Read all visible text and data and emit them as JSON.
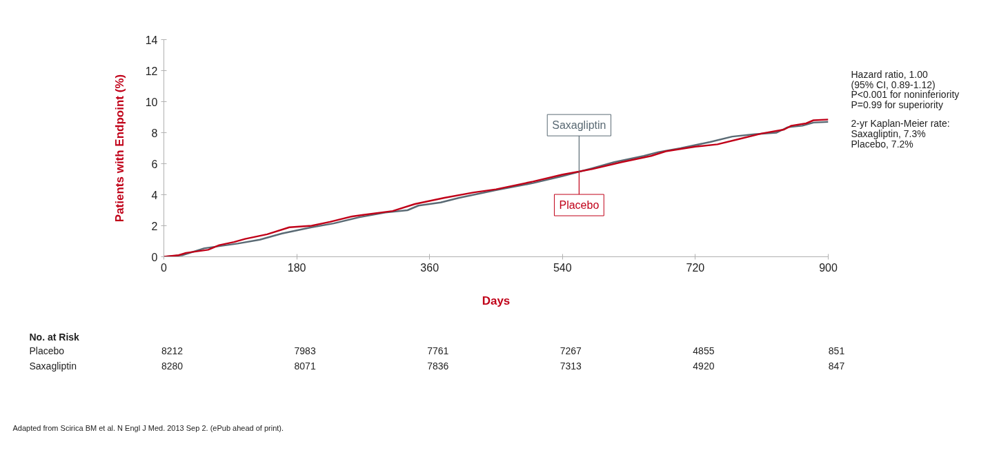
{
  "chart_data": {
    "type": "line",
    "xlabel": "Days",
    "ylabel": "Patients with Endpoint (%)",
    "xlim": [
      0,
      900
    ],
    "xticks": [
      0,
      180,
      360,
      540,
      720,
      900
    ],
    "ylim": [
      0,
      14
    ],
    "yticks": [
      0,
      2,
      4,
      6,
      8,
      10,
      12,
      14
    ],
    "grid": false,
    "legend": false,
    "marker": "none",
    "line_style": "solid",
    "series": [
      {
        "name": "Saxagliptin",
        "color": "#5a6a74",
        "x": [
          0,
          25,
          55,
          70,
          100,
          130,
          160,
          200,
          230,
          265,
          300,
          330,
          345,
          375,
          400,
          420,
          450,
          500,
          540,
          580,
          610,
          650,
          670,
          700,
          740,
          770,
          800,
          830,
          845,
          865,
          880,
          900
        ],
        "values": [
          0,
          0.1,
          0.55,
          0.65,
          0.85,
          1.1,
          1.5,
          1.9,
          2.15,
          2.55,
          2.85,
          3.0,
          3.3,
          3.5,
          3.8,
          4.0,
          4.3,
          4.75,
          5.2,
          5.7,
          6.1,
          6.5,
          6.75,
          7.0,
          7.4,
          7.75,
          7.9,
          8.0,
          8.35,
          8.45,
          8.65,
          8.7
        ]
      },
      {
        "name": "Placebo",
        "color": "#c00018",
        "x": [
          0,
          20,
          30,
          60,
          75,
          95,
          110,
          140,
          170,
          200,
          225,
          255,
          270,
          310,
          340,
          380,
          420,
          450,
          500,
          540,
          580,
          620,
          660,
          680,
          720,
          750,
          780,
          810,
          840,
          850,
          870,
          880,
          900
        ],
        "values": [
          0,
          0.1,
          0.25,
          0.45,
          0.75,
          0.95,
          1.15,
          1.45,
          1.9,
          2.0,
          2.25,
          2.6,
          2.7,
          2.95,
          3.4,
          3.8,
          4.15,
          4.35,
          4.85,
          5.3,
          5.65,
          6.1,
          6.5,
          6.8,
          7.1,
          7.25,
          7.6,
          7.95,
          8.2,
          8.45,
          8.6,
          8.8,
          8.85
        ]
      }
    ],
    "annotations": [
      "Hazard ratio, 1.00",
      "(95% CI, 0.89-1.12)",
      "P<0.001 for noninferiority",
      "P=0.99 for superiority",
      "2-yr Kaplan-Meier rate:",
      "Saxagliptin, 7.3%",
      "Placebo, 7.2%",
      "No. at Risk",
      "Placebo",
      "8212",
      "7983",
      "7761",
      "7267",
      "4855",
      "851",
      "Saxagliptin",
      "8280",
      "8071",
      "7836",
      "7313",
      "4920",
      "847",
      "Adapted from Scirica BM et al. N Engl J Med. 2013 Sep 2. (ePub ahead of print)."
    ]
  }
}
